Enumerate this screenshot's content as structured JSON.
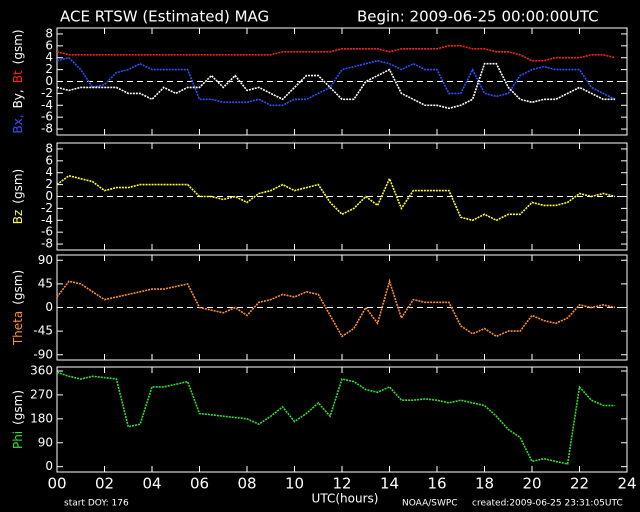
{
  "title": "ACE RTSW (Estimated) MAG",
  "begin": "Begin: 2009-06-25 00:00:00UTC",
  "footer": {
    "start": "start DOY:  176",
    "source": "NOAA/SWPC",
    "created": "created:2009-06-25 23:31:05UTC"
  },
  "x_axis": {
    "label": "UTC(hours)",
    "xlim": [
      0,
      24
    ],
    "xticks": [
      {
        "value": 0,
        "label": "00"
      },
      {
        "value": 2,
        "label": "02"
      },
      {
        "value": 4,
        "label": "04"
      },
      {
        "value": 6,
        "label": "06"
      },
      {
        "value": 8,
        "label": "08"
      },
      10,
      12,
      14,
      16,
      18,
      20,
      22,
      24
    ],
    "x": [
      0,
      0.5,
      1,
      1.5,
      2,
      2.5,
      3,
      3.5,
      4,
      4.5,
      5,
      5.5,
      6,
      6.5,
      7,
      7.5,
      8,
      8.5,
      9,
      9.5,
      10,
      10.5,
      11,
      11.5,
      12,
      12.5,
      13,
      13.5,
      14,
      14.5,
      15,
      15.5,
      16,
      16.5,
      17,
      17.5,
      18,
      18.5,
      19,
      19.5,
      20,
      20.5,
      21,
      21.5,
      22,
      22.5,
      23,
      23.5
    ]
  },
  "chart_data": [
    {
      "type": "line",
      "ylabel": [
        {
          "text": "Bx,",
          "color": "#3050ff"
        },
        {
          "text": "By,",
          "color": "#ffffff"
        },
        {
          "text": "Bt",
          "color": "#ff2020"
        },
        {
          "text": "(gsm)",
          "color": "#ffffff"
        }
      ],
      "ylim": [
        -9,
        9
      ],
      "yticks": [
        -8,
        -6,
        -4,
        -2,
        0,
        2,
        4,
        6,
        8
      ],
      "zero_line": true,
      "series": [
        {
          "color": "#ff2020",
          "values": [
            5,
            4.5,
            4.5,
            4.5,
            4.5,
            4.5,
            4.5,
            4.5,
            4.5,
            4.5,
            4.5,
            4.5,
            4.5,
            4.5,
            4.5,
            4.5,
            4.5,
            4.5,
            4.5,
            5,
            5,
            5,
            5,
            5,
            5.5,
            5.5,
            5.5,
            5.5,
            5,
            5.5,
            5.5,
            5.5,
            5.5,
            6,
            6,
            5.5,
            5.5,
            5,
            5,
            4.5,
            3.5,
            3.5,
            4,
            4,
            4,
            4.5,
            4.5,
            4
          ]
        },
        {
          "color": "#3050ff",
          "values": [
            3.5,
            4,
            2,
            -1,
            -0.5,
            1.5,
            2,
            3,
            2,
            2,
            2,
            2,
            -3,
            -3,
            -3.5,
            -3.5,
            -3.5,
            -3,
            -4,
            -4,
            -3,
            -3,
            -2,
            -1,
            2,
            2.5,
            3,
            3.5,
            3,
            2,
            3,
            2,
            2,
            -2,
            -2,
            2,
            -2,
            -2.5,
            -2,
            1,
            2,
            2.5,
            2,
            2,
            2,
            -1,
            -2,
            -3
          ]
        },
        {
          "color": "#ffffff",
          "values": [
            -1,
            -1.5,
            -1,
            -1,
            -1,
            -1,
            -2,
            -2,
            -3,
            -1,
            -2,
            -1,
            -1,
            1,
            -1,
            1,
            -1.5,
            -1,
            -2,
            -3,
            -1,
            1,
            1,
            -1,
            -3,
            -3,
            0,
            1,
            2,
            -2,
            -3,
            -4,
            -4,
            -4.5,
            -4,
            -3,
            3,
            3,
            -1,
            -3,
            -3.5,
            -3,
            -3,
            -2,
            -1,
            -2,
            -3,
            -3
          ]
        }
      ]
    },
    {
      "type": "line",
      "ylabel": [
        {
          "text": "Bz",
          "color": "#ffff30"
        },
        {
          "text": "(gsm)",
          "color": "#ffffff"
        }
      ],
      "ylim": [
        -9,
        9
      ],
      "yticks": [
        -8,
        -6,
        -4,
        -2,
        0,
        2,
        4,
        6,
        8
      ],
      "zero_line": true,
      "series": [
        {
          "color": "#ffff30",
          "values": [
            2,
            3.5,
            3,
            2.5,
            1,
            1.5,
            1.5,
            2,
            2,
            2,
            2,
            2,
            0,
            0,
            -0.5,
            0,
            -1,
            0.5,
            1,
            2,
            1,
            1.5,
            2,
            -1,
            -3,
            -2,
            0,
            -1.5,
            3,
            -2,
            1,
            1,
            1,
            1,
            -3.5,
            -4,
            -3,
            -4,
            -3,
            -3,
            -1,
            -1.5,
            -1.5,
            -1,
            0.5,
            0,
            0.5,
            0
          ]
        }
      ]
    },
    {
      "type": "line",
      "ylabel": [
        {
          "text": "Theta",
          "color": "#ff9030"
        },
        {
          "text": "(gsm)",
          "color": "#ffffff"
        }
      ],
      "ylim": [
        -100,
        100
      ],
      "yticks": [
        -90,
        -45,
        0,
        45,
        90
      ],
      "zero_line": true,
      "series": [
        {
          "color": "#ff9030",
          "values": [
            20,
            50,
            45,
            30,
            15,
            20,
            25,
            30,
            35,
            35,
            40,
            45,
            0,
            -5,
            -10,
            0,
            -15,
            10,
            15,
            25,
            20,
            30,
            25,
            -15,
            -55,
            -40,
            0,
            -30,
            50,
            -20,
            15,
            10,
            10,
            10,
            -35,
            -50,
            -40,
            -55,
            -45,
            -45,
            -15,
            -25,
            -30,
            -20,
            5,
            0,
            5,
            0
          ]
        }
      ]
    },
    {
      "type": "line",
      "ylabel": [
        {
          "text": "Phi",
          "color": "#30e030"
        },
        {
          "text": "(gsm)",
          "color": "#ffffff"
        }
      ],
      "ylim": [
        -20,
        375
      ],
      "yticks": [
        0,
        90,
        180,
        270,
        360
      ],
      "zero_line": false,
      "series": [
        {
          "color": "#30e030",
          "values": [
            355,
            340,
            330,
            340,
            335,
            330,
            150,
            160,
            300,
            300,
            310,
            320,
            200,
            195,
            190,
            185,
            180,
            160,
            190,
            225,
            170,
            200,
            240,
            190,
            330,
            320,
            290,
            280,
            300,
            250,
            250,
            255,
            250,
            240,
            250,
            240,
            230,
            190,
            140,
            110,
            20,
            30,
            20,
            10,
            300,
            250,
            230,
            230
          ]
        }
      ]
    }
  ]
}
